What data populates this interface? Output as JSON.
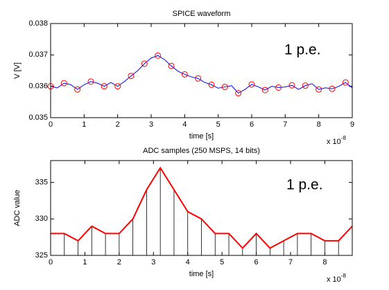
{
  "chart_data": [
    {
      "type": "line",
      "title": "SPICE waveform",
      "x_label": "time [s]",
      "y_label": "V [V]",
      "x_multiplier": {
        "base": "x 10",
        "exponent": "-8"
      },
      "annotation": "1 p.e.",
      "xlim": [
        0,
        9
      ],
      "xticks": [
        0,
        1,
        2,
        3,
        4,
        5,
        6,
        7,
        8,
        9
      ],
      "ylim": [
        0.035,
        0.038
      ],
      "yticks": [
        0.035,
        0.036,
        0.037,
        0.038
      ],
      "series": [
        {
          "type": "line",
          "color": "#0000ff",
          "x": [
            0,
            0.2,
            0.4,
            0.6,
            0.8,
            1,
            1.2,
            1.4,
            1.6,
            1.8,
            2,
            2.2,
            2.4,
            2.6,
            2.8,
            3,
            3.2,
            3.4,
            3.6,
            3.8,
            4,
            4.2,
            4.4,
            4.6,
            4.8,
            5,
            5.2,
            5.4,
            5.6,
            5.8,
            6,
            6.2,
            6.4,
            6.6,
            6.8,
            7,
            7.2,
            7.4,
            7.6,
            7.8,
            8,
            8.2,
            8.4,
            8.6,
            8.8,
            9
          ],
          "values": [
            0.036,
            0.03595,
            0.0361,
            0.03605,
            0.0359,
            0.03605,
            0.03615,
            0.0361,
            0.036,
            0.03612,
            0.036,
            0.03615,
            0.03633,
            0.0365,
            0.03672,
            0.0369,
            0.03698,
            0.03685,
            0.03665,
            0.03648,
            0.03638,
            0.0363,
            0.03625,
            0.03612,
            0.03605,
            0.03594,
            0.03598,
            0.03602,
            0.03578,
            0.0359,
            0.03606,
            0.03598,
            0.03588,
            0.036,
            0.03596,
            0.03598,
            0.03603,
            0.0359,
            0.03602,
            0.03608,
            0.0359,
            0.03595,
            0.03592,
            0.036,
            0.03612,
            0.03595
          ]
        },
        {
          "type": "scatter",
          "color": "#ff0000",
          "x": [
            0,
            0.4,
            0.8,
            1.2,
            1.6,
            2,
            2.4,
            2.8,
            3.2,
            3.6,
            4,
            4.4,
            4.8,
            5.2,
            5.6,
            6,
            6.4,
            6.8,
            7.2,
            7.6,
            8,
            8.4,
            8.8
          ],
          "values": [
            0.036,
            0.0361,
            0.0359,
            0.03615,
            0.036,
            0.036,
            0.03633,
            0.03672,
            0.03698,
            0.03665,
            0.03638,
            0.03625,
            0.03605,
            0.03598,
            0.03578,
            0.03606,
            0.03588,
            0.03596,
            0.03603,
            0.03602,
            0.0359,
            0.03592,
            0.03612
          ]
        }
      ]
    },
    {
      "type": "stem",
      "title": "ADC samples (250 MSPS, 14 bits)",
      "x_label": "time [s]",
      "y_label": "ADC value",
      "x_multiplier": {
        "base": "x 10",
        "exponent": "-8"
      },
      "annotation": "1 p.e.",
      "xlim": [
        0,
        8.8
      ],
      "xticks": [
        0,
        1,
        2,
        3,
        4,
        5,
        6,
        7,
        8
      ],
      "ylim": [
        325,
        338
      ],
      "yticks": [
        325,
        330,
        335
      ],
      "color": "#ff0000",
      "stem_color": "#000000",
      "x": [
        0,
        0.4,
        0.8,
        1.2,
        1.6,
        2,
        2.4,
        2.8,
        3.2,
        3.6,
        4,
        4.4,
        4.8,
        5.2,
        5.6,
        6,
        6.4,
        6.8,
        7.2,
        7.6,
        8,
        8.4,
        8.8
      ],
      "values": [
        328,
        328,
        327,
        329,
        328,
        328,
        330,
        334,
        337,
        334,
        331,
        330,
        328,
        328,
        326,
        328,
        326,
        327,
        328,
        328,
        327,
        327,
        329
      ]
    }
  ]
}
